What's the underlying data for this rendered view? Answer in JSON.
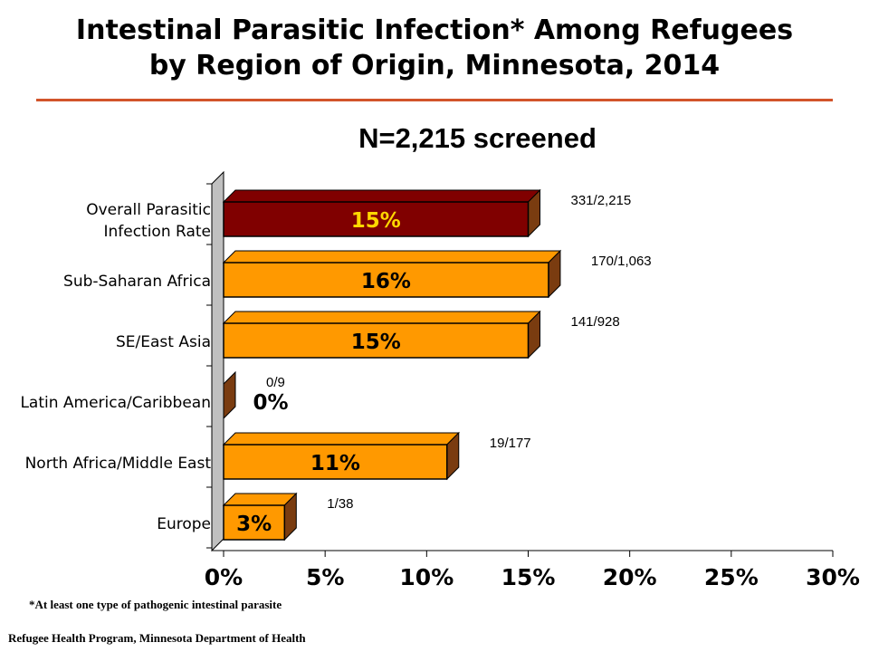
{
  "title": {
    "line1": "Intestinal Parasitic Infection* Among Refugees",
    "line2": "by Region of Origin, Minnesota, 2014"
  },
  "subtitle": "N=2,215 screened",
  "footnote": "*At least one type of pathogenic intestinal parasite",
  "source": "Refugee Health Program, Minnesota Department of Health",
  "colors": {
    "rule": "#d2542a",
    "highlight_bar": "#800000",
    "highlight_label": "#ffd700",
    "bar": "#ff9900",
    "bar_side": "#7a3c10",
    "wall": "#c0c0c0"
  },
  "chart_data": {
    "type": "bar",
    "orientation": "horizontal",
    "style": "3d",
    "categories": [
      "Overall Parasitic\nInfection Rate",
      "Sub-Saharan Africa",
      "SE/East Asia",
      "Latin America/Caribbean",
      "North Africa/Middle East",
      "Europe"
    ],
    "values": [
      15,
      16,
      15,
      0,
      11,
      3
    ],
    "value_labels": [
      "15%",
      "16%",
      "15%",
      "0%",
      "11%",
      "3%"
    ],
    "count_labels": [
      "331/2,215",
      "170/1,063",
      "141/928",
      "0/9",
      "19/177",
      "1/38"
    ],
    "highlight_index": 0,
    "xlim": [
      0,
      30
    ],
    "xticks": [
      "0%",
      "5%",
      "10%",
      "15%",
      "20%",
      "25%",
      "30%"
    ],
    "grid": false,
    "legend": false,
    "xlabel": "",
    "ylabel": ""
  }
}
